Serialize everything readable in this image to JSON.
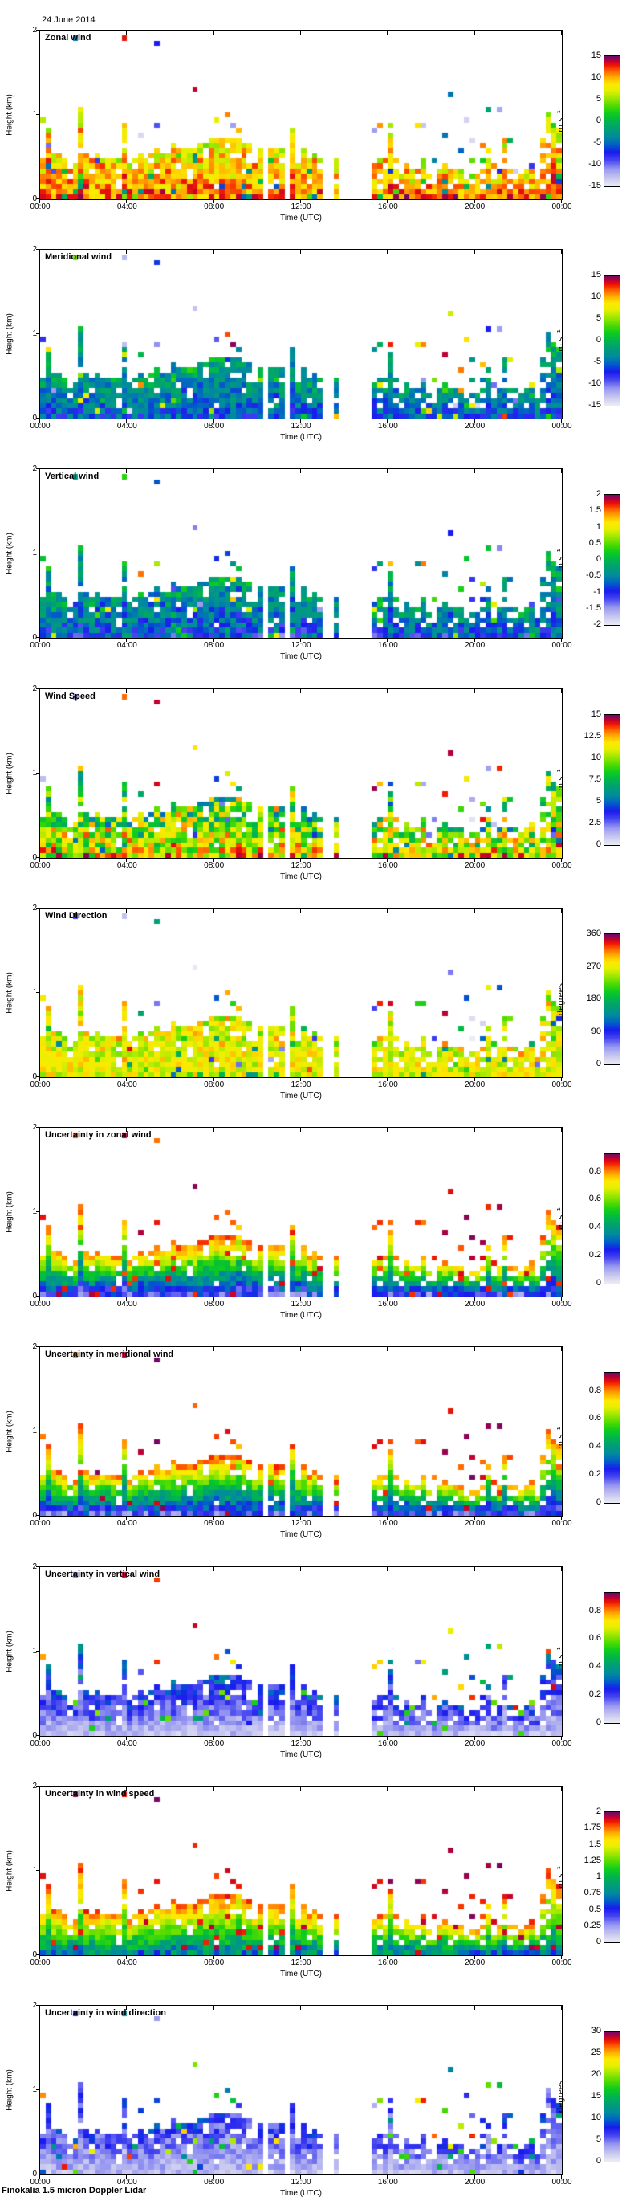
{
  "chart_data": {
    "type": "heatmap",
    "title": "24 June 2014",
    "footer": "Finokalia 1.5 micron Doppler Lidar",
    "xlabel": "Time (UTC)",
    "ylabel": "Height (km)",
    "x_ticks": [
      "00:00",
      "04:00",
      "08:00",
      "12:00",
      "16:00",
      "20:00",
      "00:00"
    ],
    "x_range_hours": [
      0,
      24
    ],
    "y_ticks": [
      {
        "label": "0",
        "value": 0
      },
      {
        "label": "1",
        "value": 1
      },
      {
        "label": "2",
        "value": 2
      }
    ],
    "y_range_km": [
      0,
      2
    ],
    "grid": false,
    "legend_position": "right-colorbar",
    "cell_minutes": 15,
    "cell_km": 0.0606,
    "data_gaps_hours": [
      [
        10.18,
        10.5
      ],
      [
        11.23,
        11.52
      ],
      [
        12.95,
        13.45
      ],
      [
        13.7,
        15.15
      ]
    ],
    "colormap_stops": [
      [
        0.0,
        "#ebebf5"
      ],
      [
        0.06,
        "#c8c8f0"
      ],
      [
        0.13,
        "#9898f0"
      ],
      [
        0.2,
        "#4444f0"
      ],
      [
        0.26,
        "#1a1aee"
      ],
      [
        0.32,
        "#0060c8"
      ],
      [
        0.38,
        "#008c9c"
      ],
      [
        0.44,
        "#009e78"
      ],
      [
        0.5,
        "#00b44e"
      ],
      [
        0.56,
        "#0ecc1e"
      ],
      [
        0.62,
        "#50dc00"
      ],
      [
        0.68,
        "#a0e800"
      ],
      [
        0.74,
        "#e8f000"
      ],
      [
        0.79,
        "#ffe800"
      ],
      [
        0.84,
        "#ffb000"
      ],
      [
        0.89,
        "#ff6000"
      ],
      [
        0.93,
        "#f01800"
      ],
      [
        0.965,
        "#c00030"
      ],
      [
        1.0,
        "#700868"
      ]
    ],
    "panels": [
      {
        "title": "Zonal wind",
        "unit": "m s⁻¹",
        "vmin": -15,
        "vmax": 15,
        "colorbar_ticks": [
          "15",
          "10",
          "5",
          "0",
          "-5",
          "-10",
          "-15"
        ],
        "model": {
          "bottom": [
            8,
            15
          ],
          "top": [
            3,
            12
          ],
          "sparse": [
            -15,
            15
          ],
          "outlier": 0.07
        }
      },
      {
        "title": "Meridional wind",
        "unit": "m s⁻¹",
        "vmin": -15,
        "vmax": 15,
        "colorbar_ticks": [
          "15",
          "10",
          "5",
          "0",
          "-5",
          "-10",
          "-15"
        ],
        "model": {
          "bottom": [
            -9,
            -3
          ],
          "top": [
            -5,
            3
          ],
          "sparse": [
            -15,
            15
          ],
          "outlier": 0.07
        }
      },
      {
        "title": "Vertical wind",
        "unit": "m s⁻¹",
        "vmin": -2,
        "vmax": 2,
        "colorbar_ticks": [
          "2",
          "1.5",
          "1",
          "0.5",
          "0",
          "-0.5",
          "-1",
          "-1.5",
          "-2"
        ],
        "model": {
          "bottom": [
            -1.4,
            -0.3
          ],
          "top": [
            -0.7,
            0.4
          ],
          "sparse": [
            -2,
            2
          ],
          "outlier": 0.08
        }
      },
      {
        "title": "Wind Speed",
        "unit": "m s⁻¹",
        "vmin": 0,
        "vmax": 15,
        "colorbar_ticks": [
          "15",
          "12.5",
          "10",
          "7.5",
          "5",
          "2.5",
          "0"
        ],
        "model": {
          "bottom": [
            8,
            15
          ],
          "top": [
            4,
            13
          ],
          "sparse": [
            0,
            15
          ],
          "outlier": 0.06
        }
      },
      {
        "title": "Wind Direction",
        "unit": "degrees",
        "vmin": 0,
        "vmax": 360,
        "colorbar_ticks": [
          "360",
          "270",
          "180",
          "90",
          "0"
        ],
        "model": {
          "bottom": [
            235,
            300
          ],
          "top": [
            215,
            320
          ],
          "sparse": [
            0,
            360
          ],
          "outlier": 0.07
        }
      },
      {
        "title": "Uncertainty in zonal wind",
        "unit": "m s⁻¹",
        "vmin": 0,
        "vmax": 0.93,
        "colorbar_ticks": [
          "0.8",
          "0.6",
          "0.4",
          "0.2",
          "0"
        ],
        "model": {
          "bottom": [
            0.08,
            0.3
          ],
          "top": [
            0.84,
            0.93
          ],
          "sparse": [
            0.8,
            0.93
          ],
          "outlier": 0.04
        }
      },
      {
        "title": "Uncertainty in meridional wind",
        "unit": "m s⁻¹",
        "vmin": 0,
        "vmax": 0.93,
        "colorbar_ticks": [
          "0.8",
          "0.6",
          "0.4",
          "0.2",
          "0"
        ],
        "model": {
          "bottom": [
            0.08,
            0.3
          ],
          "top": [
            0.84,
            0.93
          ],
          "sparse": [
            0.8,
            0.93
          ],
          "outlier": 0.04
        }
      },
      {
        "title": "Uncertainty in vertical wind",
        "unit": "m s⁻¹",
        "vmin": 0,
        "vmax": 0.93,
        "colorbar_ticks": [
          "0.8",
          "0.6",
          "0.4",
          "0.2",
          "0"
        ],
        "model": {
          "bottom": [
            0.02,
            0.12
          ],
          "top": [
            0.16,
            0.4
          ],
          "sparse": [
            0.1,
            0.9
          ],
          "outlier": 0.05
        }
      },
      {
        "title": "Uncertainty in wind speed",
        "unit": "m s⁻¹",
        "vmin": 0,
        "vmax": 2,
        "colorbar_ticks": [
          "2",
          "1.75",
          "1.5",
          "1.25",
          "1",
          "0.75",
          "0.5",
          "0.25",
          "0"
        ],
        "model": {
          "bottom": [
            0.5,
            1.0
          ],
          "top": [
            1.8,
            2.0
          ],
          "sparse": [
            1.8,
            2.0
          ],
          "outlier": 0.05
        }
      },
      {
        "title": "Uncertainty in wind direction",
        "unit": "degrees",
        "vmin": 0,
        "vmax": 30,
        "colorbar_ticks": [
          "30",
          "25",
          "20",
          "15",
          "10",
          "5",
          "0"
        ],
        "model": {
          "bottom": [
            0.5,
            4
          ],
          "top": [
            4,
            11
          ],
          "sparse": [
            2,
            30
          ],
          "outlier": 0.06
        }
      }
    ]
  }
}
